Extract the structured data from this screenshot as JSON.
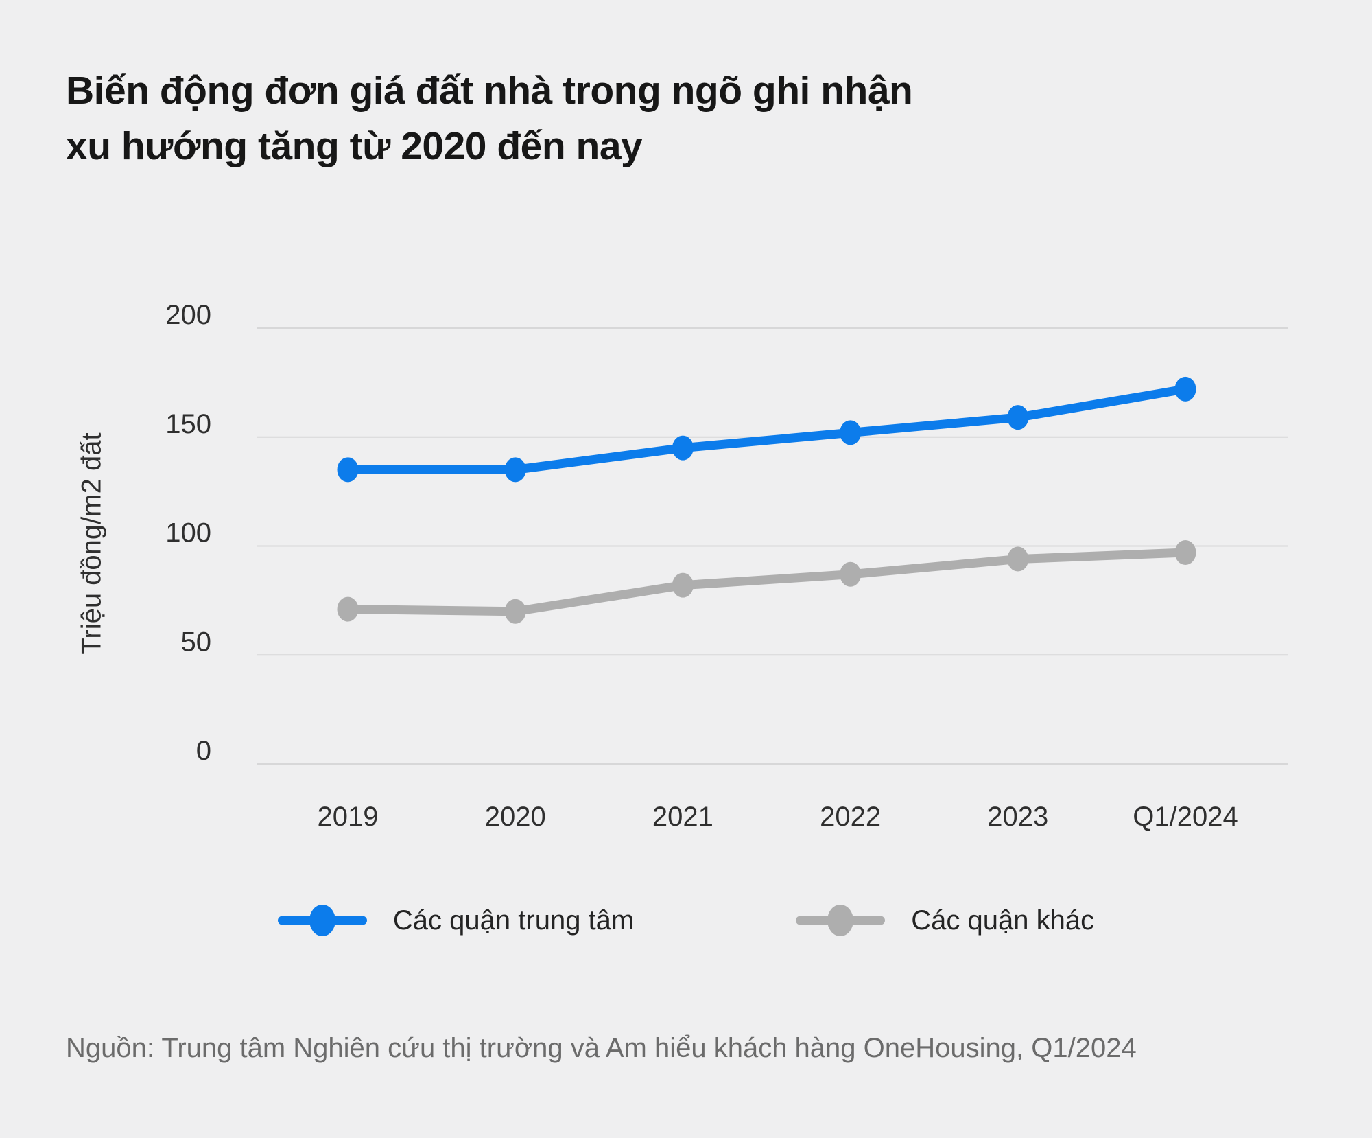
{
  "title": {
    "line1": "Biến động đơn giá đất nhà trong ngõ ghi nhận",
    "line2": "xu hướng tăng từ 2020 đến nay"
  },
  "source": "Nguồn: Trung tâm Nghiên cứu thị trường và Am hiểu khách hàng OneHousing, Q1/2024",
  "colors": {
    "background": "#efeff0",
    "grid": "#d7d7d8",
    "title_text": "#171717",
    "axis_text": "#2f2f2f",
    "source_text": "#6b6b6b",
    "series_blue": "#0c7ceb",
    "series_gray": "#aeaeae"
  },
  "chart_data": {
    "type": "line",
    "categories": [
      "2019",
      "2020",
      "2021",
      "2022",
      "2023",
      "Q1/2024"
    ],
    "series": [
      {
        "name": "Các quận trung tâm",
        "color": "#0c7ceb",
        "values": [
          135,
          135,
          145,
          152,
          159,
          172
        ]
      },
      {
        "name": "Các quận khác",
        "color": "#aeaeae",
        "values": [
          71,
          70,
          82,
          87,
          94,
          97
        ]
      }
    ],
    "title": "Biến động đơn giá đất nhà trong ngõ ghi nhận xu hướng tăng từ 2020 đến nay",
    "xlabel": "",
    "ylabel": "Triệu đồng/m2 đất",
    "yticks": [
      0,
      50,
      100,
      150,
      200
    ],
    "ylim": [
      0,
      200
    ],
    "grid": "horizontal-only",
    "legend_position": "bottom",
    "marker": "ellipse-dot"
  }
}
